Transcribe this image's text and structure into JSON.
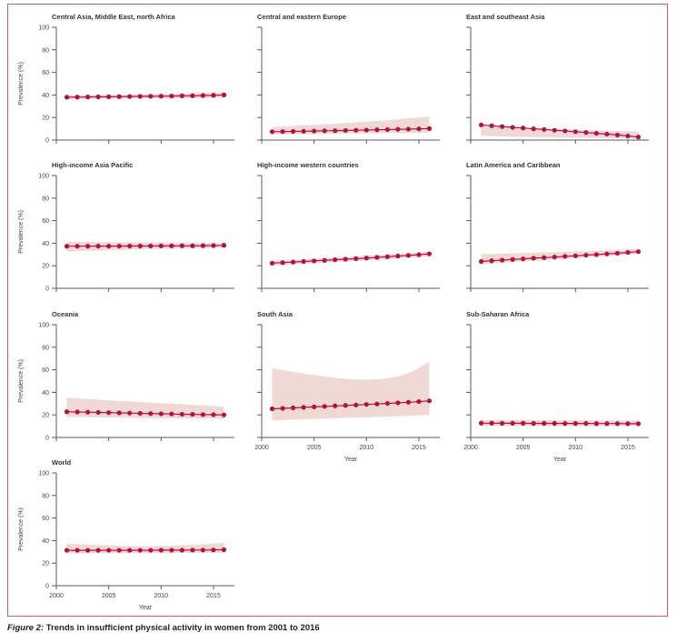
{
  "figure": {
    "caption_label": "Figure 2:",
    "caption_text": "Trends in insufficient physical activity in women from 2001 to 2016",
    "ylabel": "Prevalence (%)",
    "xlabel": "Year",
    "colors": {
      "line": "#b2123f",
      "band": "#f0d9d5",
      "border": "#c45a73",
      "axis": "#58585a",
      "tick_text": "#454545",
      "title_text": "#2f343b"
    }
  },
  "chart_data": [
    {
      "type": "line",
      "title": "Central Asia, Middle East, north Africa",
      "x": [
        2001,
        2002,
        2003,
        2004,
        2005,
        2006,
        2007,
        2008,
        2009,
        2010,
        2011,
        2012,
        2013,
        2014,
        2015,
        2016
      ],
      "values": [
        38.0,
        38.1,
        38.2,
        38.3,
        38.4,
        38.5,
        38.6,
        38.7,
        38.8,
        38.9,
        39.0,
        39.2,
        39.3,
        39.5,
        39.7,
        40.0
      ],
      "band_upper": [
        39.8,
        39.9,
        40.0,
        40.1,
        40.2,
        40.3,
        40.4,
        40.5,
        40.7,
        40.9,
        41.1,
        41.3,
        41.6,
        41.9,
        42.2,
        42.6
      ],
      "band_lower": [
        36.3,
        36.4,
        36.5,
        36.6,
        36.7,
        36.8,
        36.9,
        37.0,
        37.0,
        37.1,
        37.1,
        37.2,
        37.2,
        37.3,
        37.3,
        37.4
      ],
      "ylim": [
        0,
        100
      ],
      "xlim": [
        2000,
        2017
      ],
      "yticks": [
        0,
        20,
        40,
        60,
        80,
        100
      ],
      "xticks": [
        2000,
        2005,
        2010,
        2015
      ],
      "show_ylabels": true,
      "show_xlabels": false
    },
    {
      "type": "line",
      "title": "Central and eastern Europe",
      "x": [
        2001,
        2002,
        2003,
        2004,
        2005,
        2006,
        2007,
        2008,
        2009,
        2010,
        2011,
        2012,
        2013,
        2014,
        2015,
        2016
      ],
      "values": [
        7.4,
        7.5,
        7.7,
        7.8,
        8.0,
        8.2,
        8.3,
        8.5,
        8.7,
        8.9,
        9.1,
        9.3,
        9.5,
        9.7,
        9.9,
        10.2
      ],
      "band_upper": [
        11.5,
        12.0,
        12.5,
        13.0,
        13.5,
        14.0,
        14.6,
        15.2,
        15.8,
        16.4,
        17.0,
        17.7,
        18.4,
        19.2,
        20.0,
        21.0
      ],
      "band_lower": [
        5.0,
        5.1,
        5.2,
        5.3,
        5.4,
        5.5,
        5.6,
        5.7,
        5.8,
        5.9,
        6.0,
        6.1,
        6.2,
        6.3,
        6.4,
        6.5
      ],
      "ylim": [
        0,
        100
      ],
      "xlim": [
        2000,
        2017
      ],
      "yticks": [
        0,
        20,
        40,
        60,
        80,
        100
      ],
      "xticks": [
        2000,
        2005,
        2010,
        2015
      ],
      "show_ylabels": false,
      "show_xlabels": false
    },
    {
      "type": "line",
      "title": "East and southeast Asia",
      "x": [
        2001,
        2002,
        2003,
        2004,
        2005,
        2006,
        2007,
        2008,
        2009,
        2010,
        2011,
        2012,
        2013,
        2014,
        2015,
        2016
      ],
      "values": [
        13.4,
        12.7,
        12.0,
        11.3,
        10.7,
        10.0,
        9.4,
        8.7,
        8.1,
        7.4,
        6.7,
        6.0,
        5.3,
        4.5,
        3.6,
        2.7
      ],
      "band_upper": [
        12.5,
        12.1,
        11.7,
        11.3,
        10.9,
        10.6,
        10.2,
        9.9,
        9.6,
        9.3,
        9.0,
        8.7,
        8.4,
        8.1,
        7.8,
        7.6
      ],
      "band_lower": [
        3.6,
        3.4,
        3.2,
        3.0,
        2.9,
        2.7,
        2.6,
        2.4,
        2.3,
        2.1,
        2.0,
        1.9,
        1.7,
        1.6,
        1.4,
        1.3
      ],
      "ylim": [
        0,
        100
      ],
      "xlim": [
        2000,
        2017
      ],
      "yticks": [
        0,
        20,
        40,
        60,
        80,
        100
      ],
      "xticks": [
        2000,
        2005,
        2010,
        2015
      ],
      "show_ylabels": false,
      "show_xlabels": false
    },
    {
      "type": "line",
      "title": "High-income Asia Pacific",
      "x": [
        2001,
        2002,
        2003,
        2004,
        2005,
        2006,
        2007,
        2008,
        2009,
        2010,
        2011,
        2012,
        2013,
        2014,
        2015,
        2016
      ],
      "values": [
        37.3,
        37.3,
        37.3,
        37.4,
        37.4,
        37.4,
        37.5,
        37.5,
        37.5,
        37.6,
        37.6,
        37.7,
        37.7,
        37.8,
        37.9,
        38.1
      ],
      "band_upper": [
        41.3,
        41.2,
        41.1,
        41.0,
        40.9,
        40.8,
        40.7,
        40.6,
        40.5,
        40.5,
        40.4,
        40.4,
        40.3,
        40.3,
        40.3,
        40.4
      ],
      "band_lower": [
        32.6,
        32.9,
        33.2,
        33.5,
        33.8,
        34.1,
        34.3,
        34.6,
        34.8,
        35.0,
        35.2,
        35.4,
        35.5,
        35.6,
        35.7,
        35.8
      ],
      "ylim": [
        0,
        100
      ],
      "xlim": [
        2000,
        2017
      ],
      "yticks": [
        0,
        20,
        40,
        60,
        80,
        100
      ],
      "xticks": [
        2000,
        2005,
        2010,
        2015
      ],
      "show_ylabels": true,
      "show_xlabels": false
    },
    {
      "type": "line",
      "title": "High-income western countries",
      "x": [
        2001,
        2002,
        2003,
        2004,
        2005,
        2006,
        2007,
        2008,
        2009,
        2010,
        2011,
        2012,
        2013,
        2014,
        2015,
        2016
      ],
      "values": [
        22.3,
        22.8,
        23.3,
        23.8,
        24.3,
        24.8,
        25.3,
        25.8,
        26.3,
        26.8,
        27.4,
        28.0,
        28.6,
        29.2,
        29.8,
        30.5
      ],
      "band_upper": [
        24.4,
        24.9,
        25.4,
        25.9,
        26.4,
        26.9,
        27.4,
        27.9,
        28.5,
        29.0,
        29.6,
        30.2,
        30.8,
        31.4,
        32.1,
        32.8
      ],
      "band_lower": [
        20.2,
        20.7,
        21.2,
        21.7,
        22.2,
        22.7,
        23.2,
        23.7,
        24.2,
        24.7,
        25.2,
        25.8,
        26.4,
        27.0,
        27.6,
        28.3
      ],
      "ylim": [
        0,
        100
      ],
      "xlim": [
        2000,
        2017
      ],
      "yticks": [
        0,
        20,
        40,
        60,
        80,
        100
      ],
      "xticks": [
        2000,
        2005,
        2010,
        2015
      ],
      "show_ylabels": false,
      "show_xlabels": false
    },
    {
      "type": "line",
      "title": "Latin America and Caribbean",
      "x": [
        2001,
        2002,
        2003,
        2004,
        2005,
        2006,
        2007,
        2008,
        2009,
        2010,
        2011,
        2012,
        2013,
        2014,
        2015,
        2016
      ],
      "values": [
        23.8,
        24.4,
        25.0,
        25.6,
        26.1,
        26.7,
        27.2,
        27.7,
        28.3,
        28.8,
        29.4,
        29.9,
        30.5,
        31.1,
        31.8,
        32.5
      ],
      "band_upper": [
        30.3,
        30.5,
        30.8,
        31.0,
        31.3,
        31.5,
        31.8,
        32.1,
        32.4,
        32.7,
        33.0,
        33.4,
        33.8,
        34.2,
        34.6,
        35.1
      ],
      "band_lower": [
        21.3,
        21.9,
        22.5,
        23.1,
        23.7,
        24.3,
        24.9,
        25.5,
        26.1,
        26.7,
        27.3,
        27.9,
        28.5,
        29.1,
        29.8,
        30.4
      ],
      "ylim": [
        0,
        100
      ],
      "xlim": [
        2000,
        2017
      ],
      "yticks": [
        0,
        20,
        40,
        60,
        80,
        100
      ],
      "xticks": [
        2000,
        2005,
        2010,
        2015
      ],
      "show_ylabels": false,
      "show_xlabels": false
    },
    {
      "type": "line",
      "title": "Oceania",
      "x": [
        2001,
        2002,
        2003,
        2004,
        2005,
        2006,
        2007,
        2008,
        2009,
        2010,
        2011,
        2012,
        2013,
        2014,
        2015,
        2016
      ],
      "values": [
        22.8,
        22.6,
        22.4,
        22.2,
        22.0,
        21.8,
        21.6,
        21.4,
        21.2,
        21.0,
        20.8,
        20.6,
        20.5,
        20.3,
        20.2,
        20.0
      ],
      "band_upper": [
        35.2,
        34.6,
        34.0,
        33.5,
        32.9,
        32.4,
        31.9,
        31.4,
        30.9,
        30.4,
        29.9,
        29.4,
        28.9,
        28.4,
        27.9,
        27.4
      ],
      "band_lower": [
        18.2,
        18.1,
        18.0,
        17.8,
        17.7,
        17.6,
        17.5,
        17.3,
        17.2,
        17.1,
        17.0,
        16.9,
        16.8,
        16.7,
        16.6,
        16.5
      ],
      "ylim": [
        0,
        100
      ],
      "xlim": [
        2000,
        2017
      ],
      "yticks": [
        0,
        20,
        40,
        60,
        80,
        100
      ],
      "xticks": [
        2000,
        2005,
        2010,
        2015
      ],
      "show_ylabels": true,
      "show_xlabels": false
    },
    {
      "type": "line",
      "title": "South Asia",
      "x": [
        2001,
        2002,
        2003,
        2004,
        2005,
        2006,
        2007,
        2008,
        2009,
        2010,
        2011,
        2012,
        2013,
        2014,
        2015,
        2016
      ],
      "values": [
        25.4,
        25.8,
        26.2,
        26.7,
        27.1,
        27.5,
        28.0,
        28.4,
        28.8,
        29.3,
        29.7,
        30.2,
        30.7,
        31.2,
        31.8,
        32.5
      ],
      "band_upper": [
        61.5,
        59.8,
        58.2,
        56.7,
        55.3,
        54.0,
        52.9,
        52.0,
        51.4,
        51.2,
        51.5,
        52.5,
        54.2,
        57.0,
        61.5,
        67.5
      ],
      "band_lower": [
        15.2,
        15.5,
        15.8,
        16.1,
        16.4,
        16.7,
        17.0,
        17.3,
        17.6,
        17.9,
        18.2,
        18.5,
        18.8,
        19.1,
        19.5,
        19.9
      ],
      "ylim": [
        0,
        100
      ],
      "xlim": [
        2000,
        2017
      ],
      "yticks": [
        0,
        20,
        40,
        60,
        80,
        100
      ],
      "xticks": [
        2000,
        2005,
        2010,
        2015
      ],
      "show_ylabels": false,
      "show_xlabels": true
    },
    {
      "type": "line",
      "title": "Sub-Saharan Africa",
      "x": [
        2001,
        2002,
        2003,
        2004,
        2005,
        2006,
        2007,
        2008,
        2009,
        2010,
        2011,
        2012,
        2013,
        2014,
        2015,
        2016
      ],
      "values": [
        12.7,
        12.7,
        12.6,
        12.6,
        12.6,
        12.5,
        12.5,
        12.5,
        12.4,
        12.4,
        12.4,
        12.3,
        12.3,
        12.3,
        12.2,
        12.2
      ],
      "band_upper": [
        15.6,
        15.6,
        15.5,
        15.5,
        15.5,
        15.4,
        15.4,
        15.4,
        15.3,
        15.3,
        15.3,
        15.2,
        15.2,
        15.2,
        15.1,
        15.1
      ],
      "band_lower": [
        10.3,
        10.3,
        10.3,
        10.2,
        10.2,
        10.2,
        10.2,
        10.1,
        10.1,
        10.1,
        10.1,
        10.0,
        10.0,
        10.0,
        10.0,
        9.9
      ],
      "ylim": [
        0,
        100
      ],
      "xlim": [
        2000,
        2017
      ],
      "yticks": [
        0,
        20,
        40,
        60,
        80,
        100
      ],
      "xticks": [
        2000,
        2005,
        2010,
        2015
      ],
      "show_ylabels": false,
      "show_xlabels": true
    },
    {
      "type": "line",
      "title": "World",
      "x": [
        2001,
        2002,
        2003,
        2004,
        2005,
        2006,
        2007,
        2008,
        2009,
        2010,
        2011,
        2012,
        2013,
        2014,
        2015,
        2016
      ],
      "values": [
        31.4,
        31.4,
        31.4,
        31.4,
        31.4,
        31.4,
        31.4,
        31.4,
        31.4,
        31.5,
        31.5,
        31.5,
        31.6,
        31.6,
        31.7,
        31.9
      ],
      "band_upper": [
        37.4,
        36.9,
        36.5,
        36.1,
        35.8,
        35.5,
        35.3,
        35.2,
        35.2,
        35.3,
        35.5,
        35.8,
        36.2,
        36.7,
        37.3,
        38.1
      ],
      "band_lower": [
        28.6,
        28.6,
        28.6,
        28.7,
        28.7,
        28.7,
        28.8,
        28.8,
        28.8,
        28.9,
        28.9,
        29.0,
        29.0,
        29.1,
        29.2,
        29.3
      ],
      "ylim": [
        0,
        100
      ],
      "xlim": [
        2000,
        2017
      ],
      "yticks": [
        0,
        20,
        40,
        60,
        80,
        100
      ],
      "xticks": [
        2000,
        2005,
        2010,
        2015
      ],
      "show_ylabels": true,
      "show_xlabels": true
    }
  ]
}
